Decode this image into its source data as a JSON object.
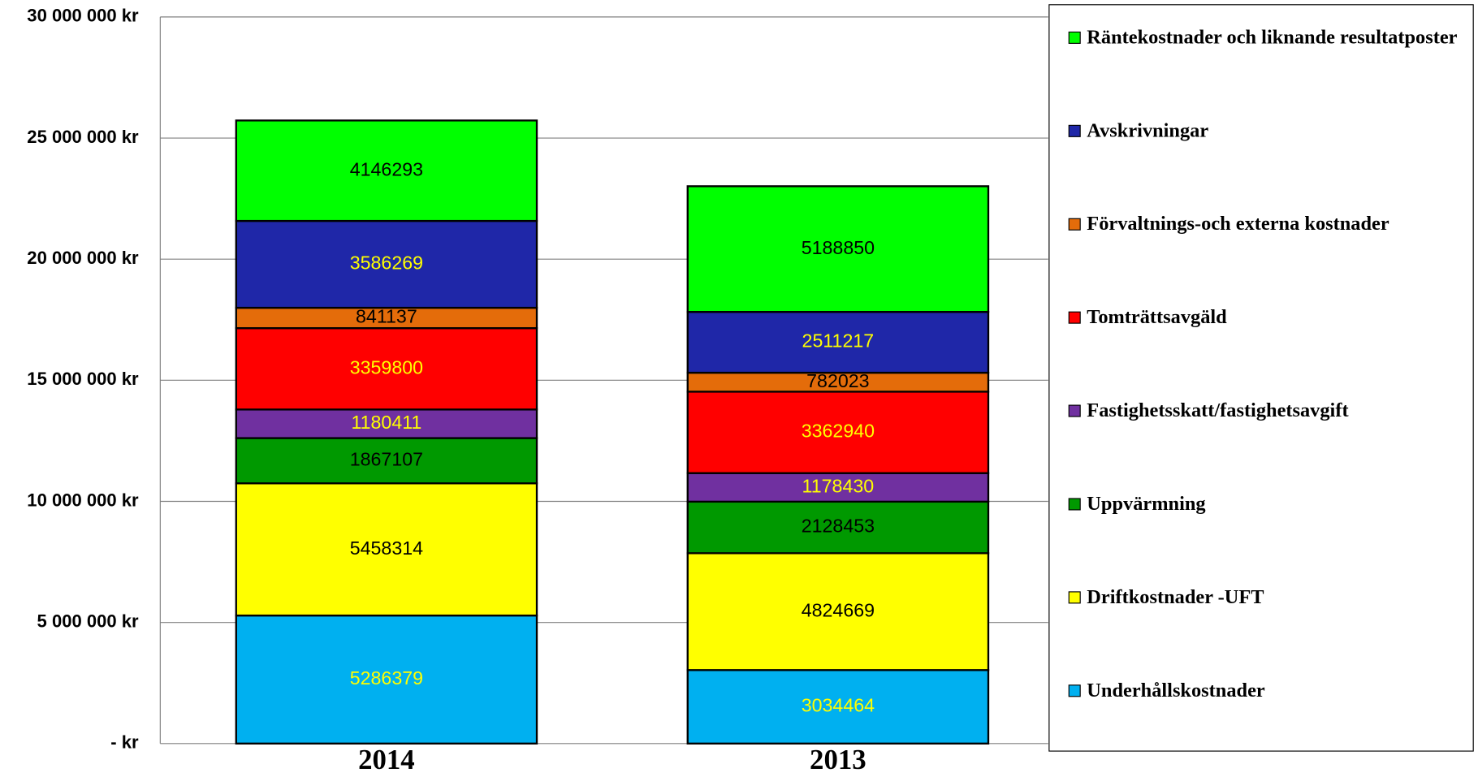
{
  "chart_data": {
    "type": "stacked_bar",
    "categories": [
      "2014",
      "2013"
    ],
    "series": [
      {
        "name": "Underhållskostnader",
        "color": "#00b0f0",
        "label_color": "#ffff00",
        "values": [
          5286379,
          3034464
        ]
      },
      {
        "name": "Driftkostnader  -UFT",
        "color": "#ffff00",
        "label_color": "#000000",
        "values": [
          5458314,
          4824669
        ]
      },
      {
        "name": "Uppvärmning",
        "color": "#009900",
        "label_color": "#000000",
        "values": [
          1867107,
          2128453
        ]
      },
      {
        "name": "Fastighetsskatt/fastighetsavgift",
        "color": "#7030a0",
        "label_color": "#ffff00",
        "values": [
          1180411,
          1178430
        ]
      },
      {
        "name": "Tomträttsavgäld",
        "color": "#ff0000",
        "label_color": "#ffff00",
        "values": [
          3359800,
          3362940
        ]
      },
      {
        "name": "Förvaltnings-och externa kostnader",
        "color": "#e46c0a",
        "label_color": "#000000",
        "values": [
          841137,
          782023
        ]
      },
      {
        "name": "Avskrivningar",
        "color": "#1f27a8",
        "label_color": "#ffff00",
        "values": [
          3586269,
          2511217
        ]
      },
      {
        "name": "Räntekostnader och liknande resultatposter",
        "color": "#00ff00",
        "label_color": "#000000",
        "values": [
          4146293,
          5188850
        ]
      }
    ],
    "ylim": [
      0,
      30000000
    ],
    "yticks": [
      {
        "value": 0,
        "label": "- kr"
      },
      {
        "value": 5000000,
        "label": "5 000 000 kr"
      },
      {
        "value": 10000000,
        "label": "10 000 000 kr"
      },
      {
        "value": 15000000,
        "label": "15 000 000 kr"
      },
      {
        "value": 20000000,
        "label": "20 000 000 kr"
      },
      {
        "value": 25000000,
        "label": "25 000 000 kr"
      },
      {
        "value": 30000000,
        "label": "30 000 000 kr"
      }
    ],
    "grid": true,
    "legend": "right"
  }
}
